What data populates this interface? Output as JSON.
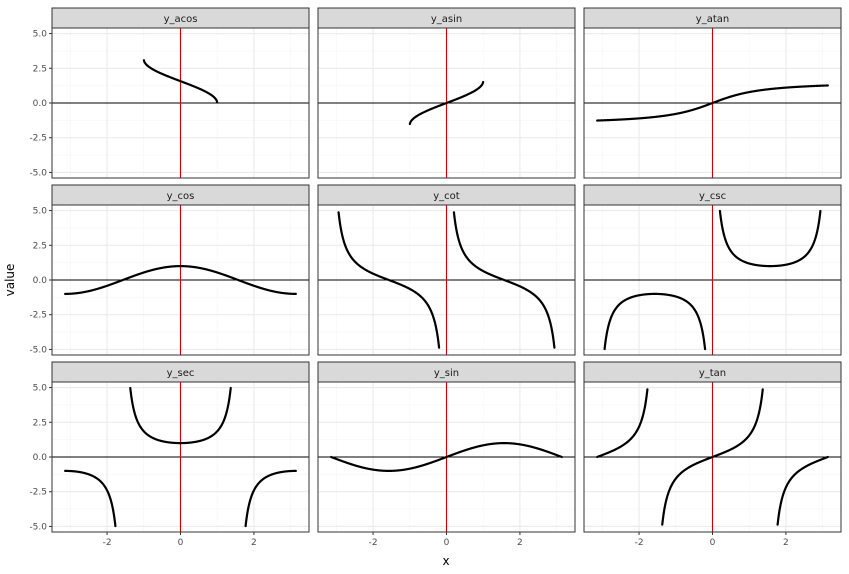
{
  "chart_data": {
    "type": "scatter",
    "layout": "facet_wrap",
    "xlabel": "x",
    "ylabel": "value",
    "xlim": [
      -3.5,
      3.5
    ],
    "ylim": [
      -5.4,
      5.4
    ],
    "x_ticks": [
      -2,
      0,
      2
    ],
    "x_tick_labels": [
      "-2",
      "0",
      "2"
    ],
    "y_ticks": [
      5.0,
      2.5,
      0.0,
      -2.5,
      -5.0
    ],
    "y_tick_labels": [
      "5.0",
      "2.5",
      "0.0",
      "-2.5",
      "-5.0"
    ],
    "x_range": [
      -3.14159,
      3.14159
    ],
    "y_clip": [
      -5,
      5
    ],
    "grid": true,
    "theme": "bw",
    "reference_lines": {
      "hline_y": 0,
      "vline_x": 0,
      "hline_color": "#000000",
      "vline_color": "#cc0000"
    },
    "colors": {
      "strip_fill": "#d9d9d9",
      "panel_border": "#333333",
      "grid_major": "#ebebeb",
      "grid_minor": "#f5f5f5",
      "points": "#000000"
    },
    "panels": [
      {
        "title": "y_acos",
        "func": "acos"
      },
      {
        "title": "y_asin",
        "func": "asin"
      },
      {
        "title": "y_atan",
        "func": "atan"
      },
      {
        "title": "y_cos",
        "func": "cos"
      },
      {
        "title": "y_cot",
        "func": "cot"
      },
      {
        "title": "y_csc",
        "func": "csc"
      },
      {
        "title": "y_sec",
        "func": "sec"
      },
      {
        "title": "y_sin",
        "func": "sin"
      },
      {
        "title": "y_tan",
        "func": "tan"
      }
    ]
  }
}
